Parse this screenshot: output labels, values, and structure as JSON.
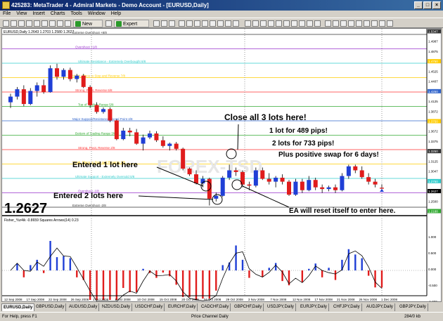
{
  "window": {
    "title": "425283: MetaTrader 4 - Admiral Markets - Demo Account - [EURUSD,Daily]"
  },
  "menu": [
    "File",
    "View",
    "Insert",
    "Charts",
    "Tools",
    "Window",
    "Help"
  ],
  "toolbar": {
    "new_order_label": "New Order",
    "expert_advisors_label": "Expert Advisors"
  },
  "chart": {
    "header_text": "EURUSD,Daily  1.2643 1.2703 1.2580 1.2627",
    "big_price": "1.2627",
    "indicator_label": "Fisher_Yur4ik -0.8659  Squares Arrows(14) 0.23",
    "levels": [
      {
        "label": "Extreme Overshoot  +8/8",
        "color": "#333333"
      },
      {
        "label": "Overshoot  +1/8",
        "color": "#9933cc"
      },
      {
        "label": "Ultimate Resistance - Extremely Overbought  8/8",
        "color": "#33cccc"
      },
      {
        "label": "Weak, Place to Stop and Reverse  7/8",
        "color": "#ffcc00"
      },
      {
        "label": "Strong, Pivot, Reverse  6/8",
        "color": "#ff3333"
      },
      {
        "label": "Top of Trading Range  5/8",
        "color": "#33aa33"
      },
      {
        "label": "Major Support/Resistance Pivotal Point  4/8",
        "color": "#3366cc"
      },
      {
        "label": "Bottom of Trading Range  3/8",
        "color": "#33aa33"
      },
      {
        "label": "Strong, Pivot, Reverse  2/8",
        "color": "#ff3333"
      },
      {
        "label": "Weak, Place to Stop and Reverse  1/8",
        "color": "#ffcc00"
      },
      {
        "label": "Ultimate Support - Extremely Oversold  0/8",
        "color": "#33cccc"
      },
      {
        "label": "Overshoot  -1/8",
        "color": "#9933cc"
      },
      {
        "label": "Extreme Overshoot  -2/8",
        "color": "#333333"
      }
    ],
    "price_labels": [
      "1.5347",
      "1.4987",
      "1.4875",
      "1.4750",
      "1.4525",
      "1.4407",
      "1.4250",
      "1.4125",
      "1.3872",
      "1.3750",
      "1.3672",
      "1.3375",
      "1.3250",
      "1.3125",
      "1.3047",
      "1.2750",
      "1.2627",
      "1.2500",
      "1.2188"
    ],
    "indicator_scale": [
      "1.000",
      "0.500",
      "0.000",
      "-0.500",
      "-1.000"
    ],
    "date_labels": [
      "12 Sep 2008",
      "17 Sep 2008",
      "22 Sep 2008",
      "26 Sep 2008",
      "1 Oct 2008",
      "6 Oct 2008",
      "10 Oct 2008",
      "15 Oct 2008",
      "20 Oct 2008",
      "24 Oct 2008",
      "29 Oct 2008",
      "3 Nov 2008",
      "7 Nov 2008",
      "12 Nov 2008",
      "17 Nov 2008",
      "21 Nov 2008",
      "26 Nov 2008",
      "1 Dec 2008"
    ],
    "watermark": "FOREX-TSD",
    "annotations": {
      "close_all": "Close all 3 lots here!",
      "one_lot": "1 lot for 489 pips!",
      "two_lots": "2 lots for 733 pips!",
      "swap": "Plus positive swap for 6 days!",
      "entered_one": "Entered 1 lot here",
      "entered_two": "Entered 2 lots here",
      "ea_reset": "EA will reset itself to enter here."
    }
  },
  "chart_data": {
    "type": "candlestick",
    "x": [
      "12 Sep 2008",
      "15 Sep",
      "16 Sep",
      "17 Sep 2008",
      "18 Sep",
      "19 Sep",
      "22 Sep 2008",
      "23 Sep",
      "24 Sep",
      "25 Sep",
      "26 Sep 2008",
      "29 Sep",
      "30 Sep",
      "1 Oct 2008",
      "2 Oct",
      "3 Oct",
      "6 Oct 2008",
      "7 Oct",
      "8 Oct",
      "9 Oct",
      "10 Oct 2008",
      "13 Oct",
      "14 Oct",
      "15 Oct 2008",
      "16 Oct",
      "17 Oct",
      "20 Oct 2008",
      "21 Oct",
      "22 Oct",
      "23 Oct",
      "24 Oct 2008",
      "27 Oct",
      "28 Oct",
      "29 Oct 2008",
      "30 Oct",
      "31 Oct",
      "3 Nov 2008",
      "4 Nov",
      "5 Nov",
      "6 Nov",
      "7 Nov 2008",
      "10 Nov",
      "11 Nov",
      "12 Nov 2008",
      "13 Nov",
      "14 Nov",
      "17 Nov 2008",
      "18 Nov",
      "19 Nov",
      "20 Nov",
      "21 Nov 2008",
      "24 Nov",
      "25 Nov",
      "26 Nov 2008",
      "27 Nov",
      "28 Nov",
      "1 Dec 2008"
    ],
    "ohlc": [
      [
        1.415,
        1.43,
        1.405,
        1.425
      ],
      [
        1.425,
        1.442,
        1.42,
        1.438
      ],
      [
        1.438,
        1.445,
        1.408,
        1.412
      ],
      [
        1.412,
        1.44,
        1.41,
        1.435
      ],
      [
        1.435,
        1.45,
        1.425,
        1.445
      ],
      [
        1.445,
        1.455,
        1.43,
        1.433
      ],
      [
        1.433,
        1.48,
        1.432,
        1.475
      ],
      [
        1.475,
        1.483,
        1.455,
        1.46
      ],
      [
        1.46,
        1.475,
        1.455,
        1.472
      ],
      [
        1.472,
        1.476,
        1.452,
        1.456
      ],
      [
        1.456,
        1.465,
        1.45,
        1.462
      ],
      [
        1.462,
        1.465,
        1.44,
        1.442
      ],
      [
        1.442,
        1.445,
        1.405,
        1.41
      ],
      [
        1.41,
        1.415,
        1.395,
        1.398
      ],
      [
        1.398,
        1.406,
        1.395,
        1.403
      ],
      [
        1.403,
        1.406,
        1.38,
        1.383
      ],
      [
        1.383,
        1.385,
        1.348,
        1.35
      ],
      [
        1.35,
        1.37,
        1.348,
        1.365
      ],
      [
        1.365,
        1.37,
        1.355,
        1.362
      ],
      [
        1.362,
        1.368,
        1.34,
        1.342
      ],
      [
        1.342,
        1.358,
        1.33,
        1.353
      ],
      [
        1.353,
        1.365,
        1.35,
        1.36
      ],
      [
        1.36,
        1.364,
        1.345,
        1.348
      ],
      [
        1.348,
        1.355,
        1.335,
        1.338
      ],
      [
        1.338,
        1.344,
        1.33,
        1.342
      ],
      [
        1.342,
        1.345,
        1.33,
        1.333
      ],
      [
        1.333,
        1.335,
        1.295,
        1.298
      ],
      [
        1.298,
        1.3,
        1.285,
        1.288
      ],
      [
        1.288,
        1.295,
        1.27,
        1.272
      ],
      [
        1.272,
        1.285,
        1.265,
        1.28
      ],
      [
        1.28,
        1.282,
        1.233,
        1.245
      ],
      [
        1.245,
        1.256,
        1.24,
        1.25
      ],
      [
        1.25,
        1.285,
        1.248,
        1.282
      ],
      [
        1.282,
        1.305,
        1.278,
        1.295
      ],
      [
        1.295,
        1.3,
        1.285,
        1.292
      ],
      [
        1.292,
        1.295,
        1.265,
        1.27
      ],
      [
        1.27,
        1.275,
        1.26,
        1.268
      ],
      [
        1.268,
        1.3,
        1.265,
        1.295
      ],
      [
        1.295,
        1.3,
        1.278,
        1.28
      ],
      [
        1.28,
        1.29,
        1.27,
        1.275
      ],
      [
        1.275,
        1.285,
        1.265,
        1.282
      ],
      [
        1.282,
        1.288,
        1.27,
        1.275
      ],
      [
        1.275,
        1.278,
        1.25,
        1.252
      ],
      [
        1.252,
        1.28,
        1.25,
        1.275
      ],
      [
        1.275,
        1.28,
        1.255,
        1.26
      ],
      [
        1.26,
        1.285,
        1.258,
        1.278
      ],
      [
        1.278,
        1.282,
        1.26,
        1.265
      ],
      [
        1.265,
        1.27,
        1.255,
        1.262
      ],
      [
        1.262,
        1.268,
        1.258,
        1.265
      ],
      [
        1.265,
        1.27,
        1.255,
        1.26
      ],
      [
        1.26,
        1.29,
        1.258,
        1.285
      ],
      [
        1.285,
        1.305,
        1.28,
        1.302
      ],
      [
        1.302,
        1.305,
        1.29,
        1.295
      ],
      [
        1.295,
        1.302,
        1.28,
        1.283
      ],
      [
        1.283,
        1.29,
        1.27,
        1.275
      ],
      [
        1.275,
        1.28,
        1.265,
        1.27
      ],
      [
        1.2643,
        1.2703,
        1.258,
        1.2627
      ]
    ],
    "ylim": [
      1.2188,
      1.5347
    ]
  },
  "tabs": [
    "EURUSD,Daily",
    "GBPUSD,Daily",
    "AUDUSD,Daily",
    "NZDUSD,Daily",
    "USDCHF,Daily",
    "EURCHF,Daily",
    "CADCHF,Daily",
    "GBPCHF,Daily",
    "USDJPY,Daily",
    "EURJPY,Daily",
    "CHFJPY,Daily",
    "AUDJPY,Daily",
    "GBPJPY,Daily"
  ],
  "status": {
    "help": "For Help, press F1",
    "template": "Price Channel Daily",
    "traffic": "284/0 kb"
  }
}
